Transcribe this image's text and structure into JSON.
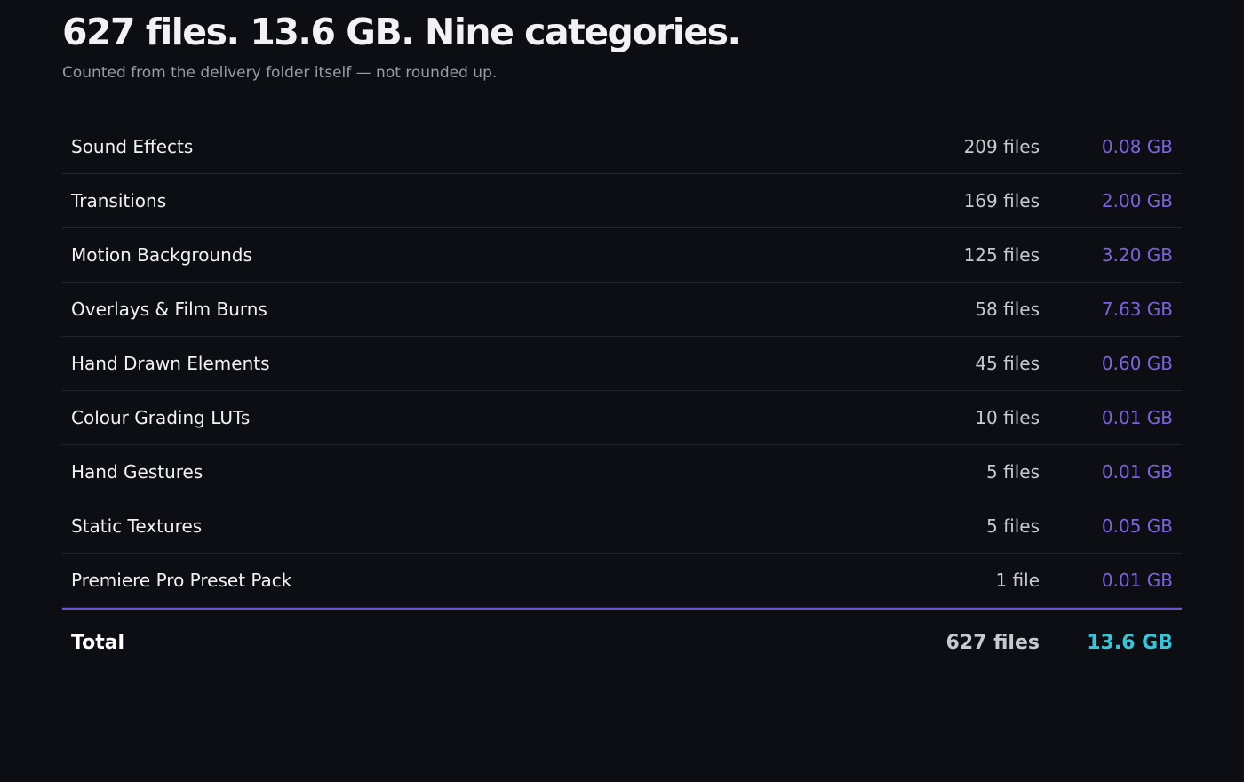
{
  "header": {
    "title": "627 files. 13.6 GB. Nine categories.",
    "subtitle": "Counted from the delivery folder itself — not rounded up."
  },
  "table": {
    "rows": [
      [
        "Sound Effects",
        "209 files",
        "0.08 GB"
      ],
      [
        "Transitions",
        "169 files",
        "2.00 GB"
      ],
      [
        "Motion Backgrounds",
        "125 files",
        "3.20 GB"
      ],
      [
        "Overlays & Film Burns",
        "58 files",
        "7.63 GB"
      ],
      [
        "Hand Drawn Elements",
        "45 files",
        "0.60 GB"
      ],
      [
        "Colour Grading LUTs",
        "10 files",
        "0.01 GB"
      ],
      [
        "Hand Gestures",
        "5 files",
        "0.01 GB"
      ],
      [
        "Static Textures",
        "5 files",
        "0.05 GB"
      ],
      [
        "Premiere Pro Preset Pack",
        "1 file",
        "0.01 GB"
      ]
    ],
    "total": [
      "Total",
      "627 files",
      "13.6 GB"
    ]
  }
}
